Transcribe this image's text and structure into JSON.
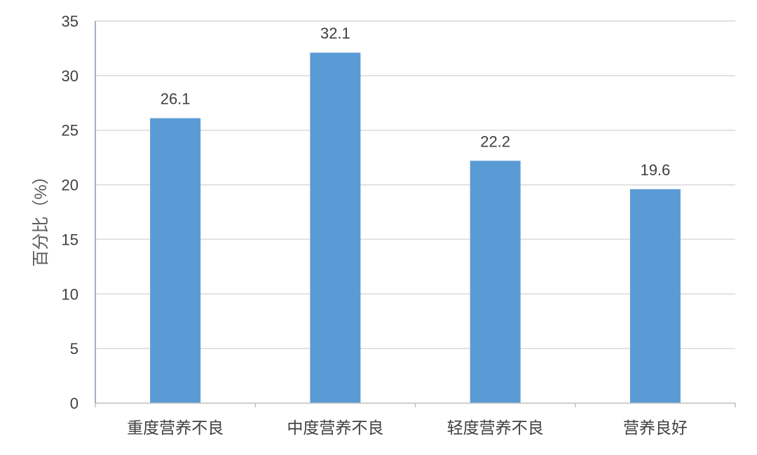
{
  "chart_data": {
    "type": "bar",
    "categories": [
      "重度营养不良",
      "中度营养不良",
      "轻度营养不良",
      "营养良好"
    ],
    "values": [
      26.1,
      32.1,
      22.2,
      19.6
    ],
    "data_labels": [
      "26.1",
      "32.1",
      "22.2",
      "19.6"
    ],
    "title": "",
    "xlabel": "",
    "ylabel": "百分比（%）",
    "ylim": [
      0,
      35
    ],
    "yticks": [
      0,
      5,
      10,
      15,
      20,
      25,
      30,
      35
    ],
    "grid": true,
    "legend": "none",
    "bar_color": "#5B9BD5"
  }
}
